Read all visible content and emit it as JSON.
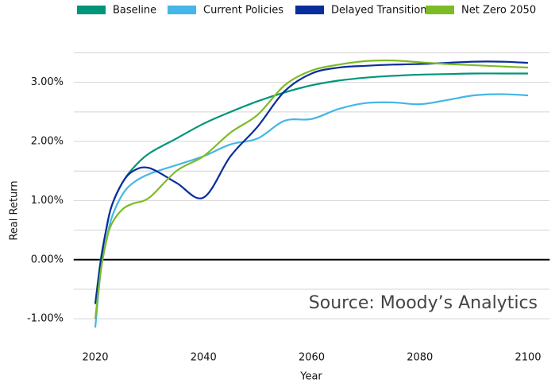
{
  "chart_data": {
    "type": "line",
    "x_label": "Year",
    "y_label": "Real Return",
    "annotation": "Source: Moody’s Analytics",
    "x": [
      2020,
      2021,
      2022,
      2023,
      2025,
      2027,
      2030,
      2035,
      2040,
      2045,
      2050,
      2055,
      2060,
      2065,
      2070,
      2075,
      2080,
      2085,
      2090,
      2095,
      2100
    ],
    "series": [
      {
        "name": "Baseline",
        "color": "#00957a",
        "values": [
          -0.75,
          0.0,
          0.5,
          0.9,
          1.3,
          1.55,
          1.8,
          2.05,
          2.3,
          2.5,
          2.68,
          2.83,
          2.95,
          3.03,
          3.08,
          3.11,
          3.13,
          3.14,
          3.15,
          3.15,
          3.15
        ]
      },
      {
        "name": "Current Policies",
        "color": "#45b6e6",
        "values": [
          -1.15,
          -0.2,
          0.3,
          0.7,
          1.1,
          1.3,
          1.45,
          1.6,
          1.75,
          1.95,
          2.05,
          2.35,
          2.38,
          2.55,
          2.65,
          2.66,
          2.63,
          2.7,
          2.78,
          2.8,
          2.78
        ]
      },
      {
        "name": "Delayed Transition",
        "color": "#0a2d9c",
        "values": [
          -0.75,
          -0.05,
          0.5,
          0.9,
          1.3,
          1.5,
          1.55,
          1.3,
          1.05,
          1.75,
          2.25,
          2.85,
          3.15,
          3.25,
          3.28,
          3.3,
          3.31,
          3.33,
          3.35,
          3.35,
          3.33
        ]
      },
      {
        "name": "Net Zero 2050",
        "color": "#7dbb26",
        "values": [
          -1.0,
          -0.2,
          0.3,
          0.6,
          0.85,
          0.95,
          1.05,
          1.5,
          1.75,
          2.15,
          2.45,
          2.95,
          3.2,
          3.3,
          3.36,
          3.37,
          3.34,
          3.31,
          3.29,
          3.27,
          3.25
        ]
      }
    ],
    "xlim": [
      2016,
      2104
    ],
    "xticks": [
      2020,
      2040,
      2060,
      2080,
      2100
    ],
    "ylim": [
      -1.2,
      3.6
    ],
    "yticks": [
      {
        "value": -1,
        "label": "-1.00%"
      },
      {
        "value": 0,
        "label": "0.00%"
      },
      {
        "value": 1,
        "label": "1.00%"
      },
      {
        "value": 2,
        "label": "2.00%"
      },
      {
        "value": 3,
        "label": "3.00%"
      }
    ],
    "minor_yticks": [
      -0.5,
      0.5,
      1.5,
      2.5,
      3.5
    ],
    "zero_line": 0,
    "grid": true,
    "legend": "top"
  }
}
